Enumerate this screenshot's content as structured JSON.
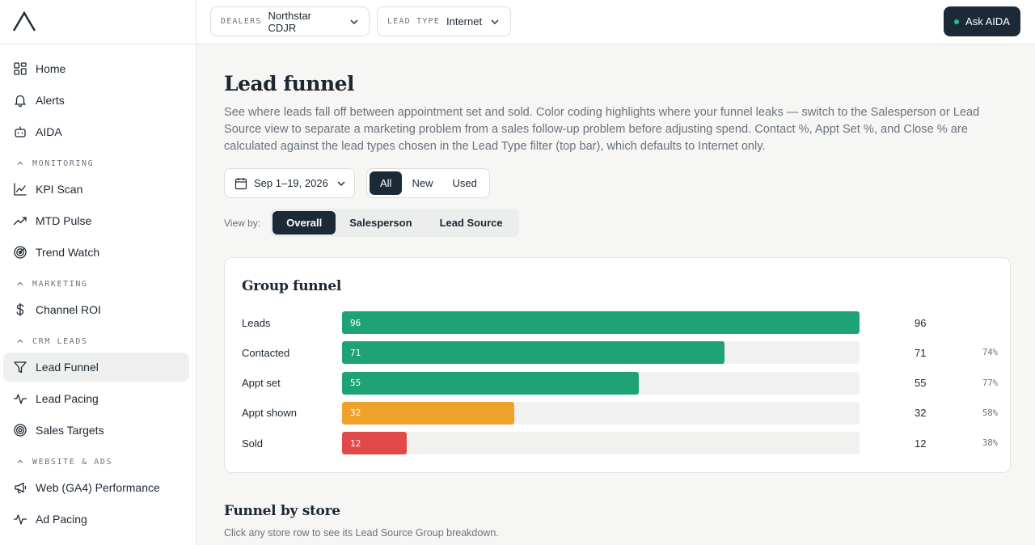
{
  "sidebar": {
    "logo_icon": "aida-logo",
    "items_top": [
      {
        "label": "Home",
        "icon": "grid-icon"
      },
      {
        "label": "Alerts",
        "icon": "bell-icon"
      },
      {
        "label": "AIDA",
        "icon": "bot-icon"
      }
    ],
    "sections": [
      {
        "title": "MONITORING",
        "items": [
          {
            "label": "KPI Scan",
            "icon": "line-chart-icon"
          },
          {
            "label": "MTD Pulse",
            "icon": "trend-up-icon"
          },
          {
            "label": "Trend Watch",
            "icon": "radar-icon"
          }
        ]
      },
      {
        "title": "MARKETING",
        "items": [
          {
            "label": "Channel ROI",
            "icon": "dollar-icon"
          }
        ]
      },
      {
        "title": "CRM LEADS",
        "items": [
          {
            "label": "Lead Funnel",
            "icon": "funnel-icon",
            "active": true
          },
          {
            "label": "Lead Pacing",
            "icon": "pulse-icon"
          },
          {
            "label": "Sales Targets",
            "icon": "target-icon"
          }
        ]
      },
      {
        "title": "WEBSITE & ADS",
        "items": [
          {
            "label": "Web (GA4) Performance",
            "icon": "megaphone-icon"
          },
          {
            "label": "Ad Pacing",
            "icon": "pulse-icon"
          }
        ]
      }
    ]
  },
  "topbar": {
    "dealers_label": "DEALERS",
    "dealers_value": "Northstar CDJR",
    "lead_type_label": "LEAD TYPE",
    "lead_type_value": "Internet",
    "ask_label": "Ask AIDA"
  },
  "page": {
    "title": "Lead funnel",
    "description": "See where leads fall off between appointment set and sold. Color coding highlights where your funnel leaks — switch to the Salesperson or Lead Source view to separate a marketing problem from a sales follow-up problem before adjusting spend. Contact %, Appt Set %, and Close % are calculated against the lead types chosen in the Lead Type filter (top bar), which defaults to Internet only.",
    "date_range": "Sep 1–19, 2026",
    "condition_options": [
      "All",
      "New",
      "Used"
    ],
    "condition_selected": "All",
    "view_by_label": "View by:",
    "view_options": [
      "Overall",
      "Salesperson",
      "Lead Source"
    ],
    "view_selected": "Overall"
  },
  "group_funnel": {
    "title": "Group funnel",
    "max": 96,
    "stages": [
      {
        "label": "Leads",
        "value": 96,
        "display": "96",
        "pct": "",
        "color": "#1fa274"
      },
      {
        "label": "Contacted",
        "value": 71,
        "display": "71",
        "pct": "74%",
        "color": "#1fa274"
      },
      {
        "label": "Appt set",
        "value": 55,
        "display": "55",
        "pct": "77%",
        "color": "#1fa274"
      },
      {
        "label": "Appt shown",
        "value": 32,
        "display": "32",
        "pct": "58%",
        "color": "#efa22a"
      },
      {
        "label": "Sold",
        "value": 12,
        "display": "12",
        "pct": "38%",
        "color": "#e24a4a"
      }
    ]
  },
  "store_section": {
    "title": "Funnel by store",
    "subtitle": "Click any store row to see its Lead Source Group breakdown."
  }
}
